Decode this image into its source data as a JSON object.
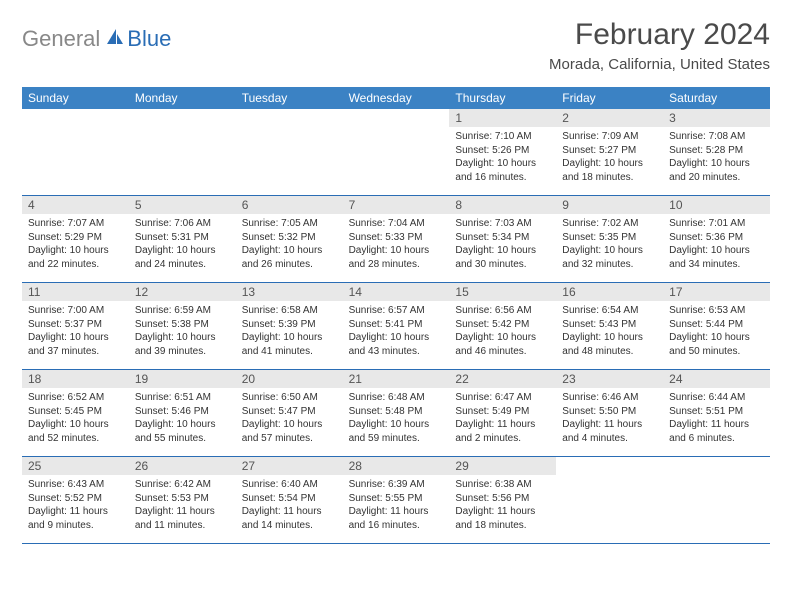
{
  "brand": {
    "part1": "General",
    "part2": "Blue"
  },
  "title": "February 2024",
  "location": "Morada, California, United States",
  "colors": {
    "header_bg": "#3b82c4",
    "header_text": "#ffffff",
    "daynum_bg": "#e8e8e8",
    "rule": "#2a6db5",
    "text": "#333333",
    "title_text": "#4a4a4a",
    "logo_grey": "#888888",
    "logo_blue": "#2a6db5"
  },
  "weekdays": [
    "Sunday",
    "Monday",
    "Tuesday",
    "Wednesday",
    "Thursday",
    "Friday",
    "Saturday"
  ],
  "weeks": [
    [
      null,
      null,
      null,
      null,
      {
        "n": "1",
        "sunrise": "7:10 AM",
        "sunset": "5:26 PM",
        "daylight": "10 hours and 16 minutes."
      },
      {
        "n": "2",
        "sunrise": "7:09 AM",
        "sunset": "5:27 PM",
        "daylight": "10 hours and 18 minutes."
      },
      {
        "n": "3",
        "sunrise": "7:08 AM",
        "sunset": "5:28 PM",
        "daylight": "10 hours and 20 minutes."
      }
    ],
    [
      {
        "n": "4",
        "sunrise": "7:07 AM",
        "sunset": "5:29 PM",
        "daylight": "10 hours and 22 minutes."
      },
      {
        "n": "5",
        "sunrise": "7:06 AM",
        "sunset": "5:31 PM",
        "daylight": "10 hours and 24 minutes."
      },
      {
        "n": "6",
        "sunrise": "7:05 AM",
        "sunset": "5:32 PM",
        "daylight": "10 hours and 26 minutes."
      },
      {
        "n": "7",
        "sunrise": "7:04 AM",
        "sunset": "5:33 PM",
        "daylight": "10 hours and 28 minutes."
      },
      {
        "n": "8",
        "sunrise": "7:03 AM",
        "sunset": "5:34 PM",
        "daylight": "10 hours and 30 minutes."
      },
      {
        "n": "9",
        "sunrise": "7:02 AM",
        "sunset": "5:35 PM",
        "daylight": "10 hours and 32 minutes."
      },
      {
        "n": "10",
        "sunrise": "7:01 AM",
        "sunset": "5:36 PM",
        "daylight": "10 hours and 34 minutes."
      }
    ],
    [
      {
        "n": "11",
        "sunrise": "7:00 AM",
        "sunset": "5:37 PM",
        "daylight": "10 hours and 37 minutes."
      },
      {
        "n": "12",
        "sunrise": "6:59 AM",
        "sunset": "5:38 PM",
        "daylight": "10 hours and 39 minutes."
      },
      {
        "n": "13",
        "sunrise": "6:58 AM",
        "sunset": "5:39 PM",
        "daylight": "10 hours and 41 minutes."
      },
      {
        "n": "14",
        "sunrise": "6:57 AM",
        "sunset": "5:41 PM",
        "daylight": "10 hours and 43 minutes."
      },
      {
        "n": "15",
        "sunrise": "6:56 AM",
        "sunset": "5:42 PM",
        "daylight": "10 hours and 46 minutes."
      },
      {
        "n": "16",
        "sunrise": "6:54 AM",
        "sunset": "5:43 PM",
        "daylight": "10 hours and 48 minutes."
      },
      {
        "n": "17",
        "sunrise": "6:53 AM",
        "sunset": "5:44 PM",
        "daylight": "10 hours and 50 minutes."
      }
    ],
    [
      {
        "n": "18",
        "sunrise": "6:52 AM",
        "sunset": "5:45 PM",
        "daylight": "10 hours and 52 minutes."
      },
      {
        "n": "19",
        "sunrise": "6:51 AM",
        "sunset": "5:46 PM",
        "daylight": "10 hours and 55 minutes."
      },
      {
        "n": "20",
        "sunrise": "6:50 AM",
        "sunset": "5:47 PM",
        "daylight": "10 hours and 57 minutes."
      },
      {
        "n": "21",
        "sunrise": "6:48 AM",
        "sunset": "5:48 PM",
        "daylight": "10 hours and 59 minutes."
      },
      {
        "n": "22",
        "sunrise": "6:47 AM",
        "sunset": "5:49 PM",
        "daylight": "11 hours and 2 minutes."
      },
      {
        "n": "23",
        "sunrise": "6:46 AM",
        "sunset": "5:50 PM",
        "daylight": "11 hours and 4 minutes."
      },
      {
        "n": "24",
        "sunrise": "6:44 AM",
        "sunset": "5:51 PM",
        "daylight": "11 hours and 6 minutes."
      }
    ],
    [
      {
        "n": "25",
        "sunrise": "6:43 AM",
        "sunset": "5:52 PM",
        "daylight": "11 hours and 9 minutes."
      },
      {
        "n": "26",
        "sunrise": "6:42 AM",
        "sunset": "5:53 PM",
        "daylight": "11 hours and 11 minutes."
      },
      {
        "n": "27",
        "sunrise": "6:40 AM",
        "sunset": "5:54 PM",
        "daylight": "11 hours and 14 minutes."
      },
      {
        "n": "28",
        "sunrise": "6:39 AM",
        "sunset": "5:55 PM",
        "daylight": "11 hours and 16 minutes."
      },
      {
        "n": "29",
        "sunrise": "6:38 AM",
        "sunset": "5:56 PM",
        "daylight": "11 hours and 18 minutes."
      },
      null,
      null
    ]
  ],
  "labels": {
    "sunrise": "Sunrise:",
    "sunset": "Sunset:",
    "daylight": "Daylight:"
  }
}
